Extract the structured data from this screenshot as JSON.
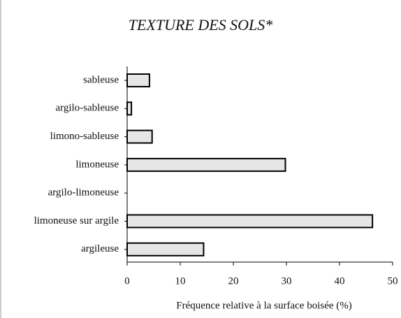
{
  "chart_data": {
    "type": "barh",
    "title": "TEXTURE DES SOLS*",
    "x_label": "Fréquence relative à la surface boisée (%)",
    "categories": [
      "sableuse",
      "argilo-sableuse",
      "limono-sableuse",
      "limoneuse",
      "argilo-limoneuse",
      "limoneuse sur argile",
      "argileuse"
    ],
    "values": [
      4.2,
      0.8,
      4.7,
      29.8,
      0,
      46.2,
      14.4
    ],
    "color": "#e6e6e6",
    "xlim": [
      0,
      50
    ],
    "xticks": [
      0,
      10,
      20,
      30,
      40,
      50
    ],
    "grid": false
  }
}
